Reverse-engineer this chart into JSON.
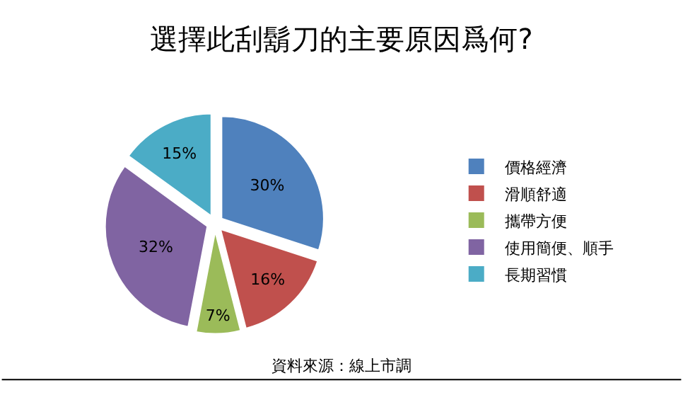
{
  "chart_data": {
    "type": "pie",
    "title": "選擇此刮鬍刀的主要原因爲何?",
    "categories": [
      "價格經濟",
      "滑順舒適",
      "攜帶方便",
      "使用簡便、順手",
      "長期習慣"
    ],
    "values": [
      30,
      16,
      7,
      32,
      15
    ],
    "value_labels": [
      "30%",
      "16%",
      "7%",
      "32%",
      "15%"
    ],
    "colors": [
      "#4f81bd",
      "#c0504d",
      "#9bbb59",
      "#8064a2",
      "#4bacc6"
    ],
    "legend": "right",
    "annotations": [
      "資料來源：線上市調"
    ]
  }
}
